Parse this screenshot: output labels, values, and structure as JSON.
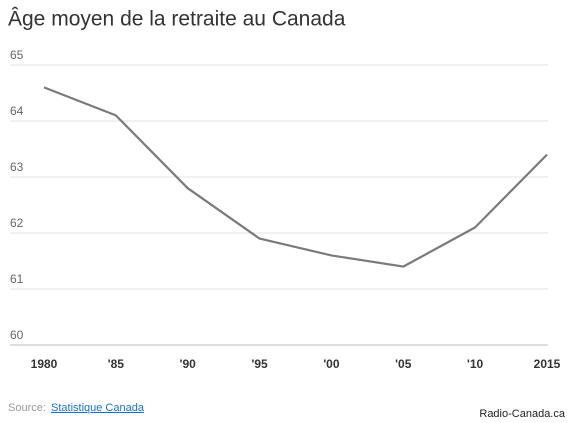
{
  "chart_data": {
    "type": "line",
    "title": "Âge moyen de la retraite au Canada",
    "categories": [
      "1980",
      "'85",
      "'90",
      "'95",
      "'00",
      "'05",
      "'10",
      "2015"
    ],
    "values": [
      64.6,
      64.1,
      62.8,
      61.9,
      61.6,
      61.4,
      62.1,
      63.4
    ],
    "color": "#7a7a7a",
    "ylim": [
      60,
      65
    ],
    "yticks": [
      60,
      61,
      62,
      63,
      64,
      65
    ],
    "grid": true,
    "source_label": "Source:",
    "source": "Statistique Canada",
    "credit": "Radio-Canada.ca"
  }
}
